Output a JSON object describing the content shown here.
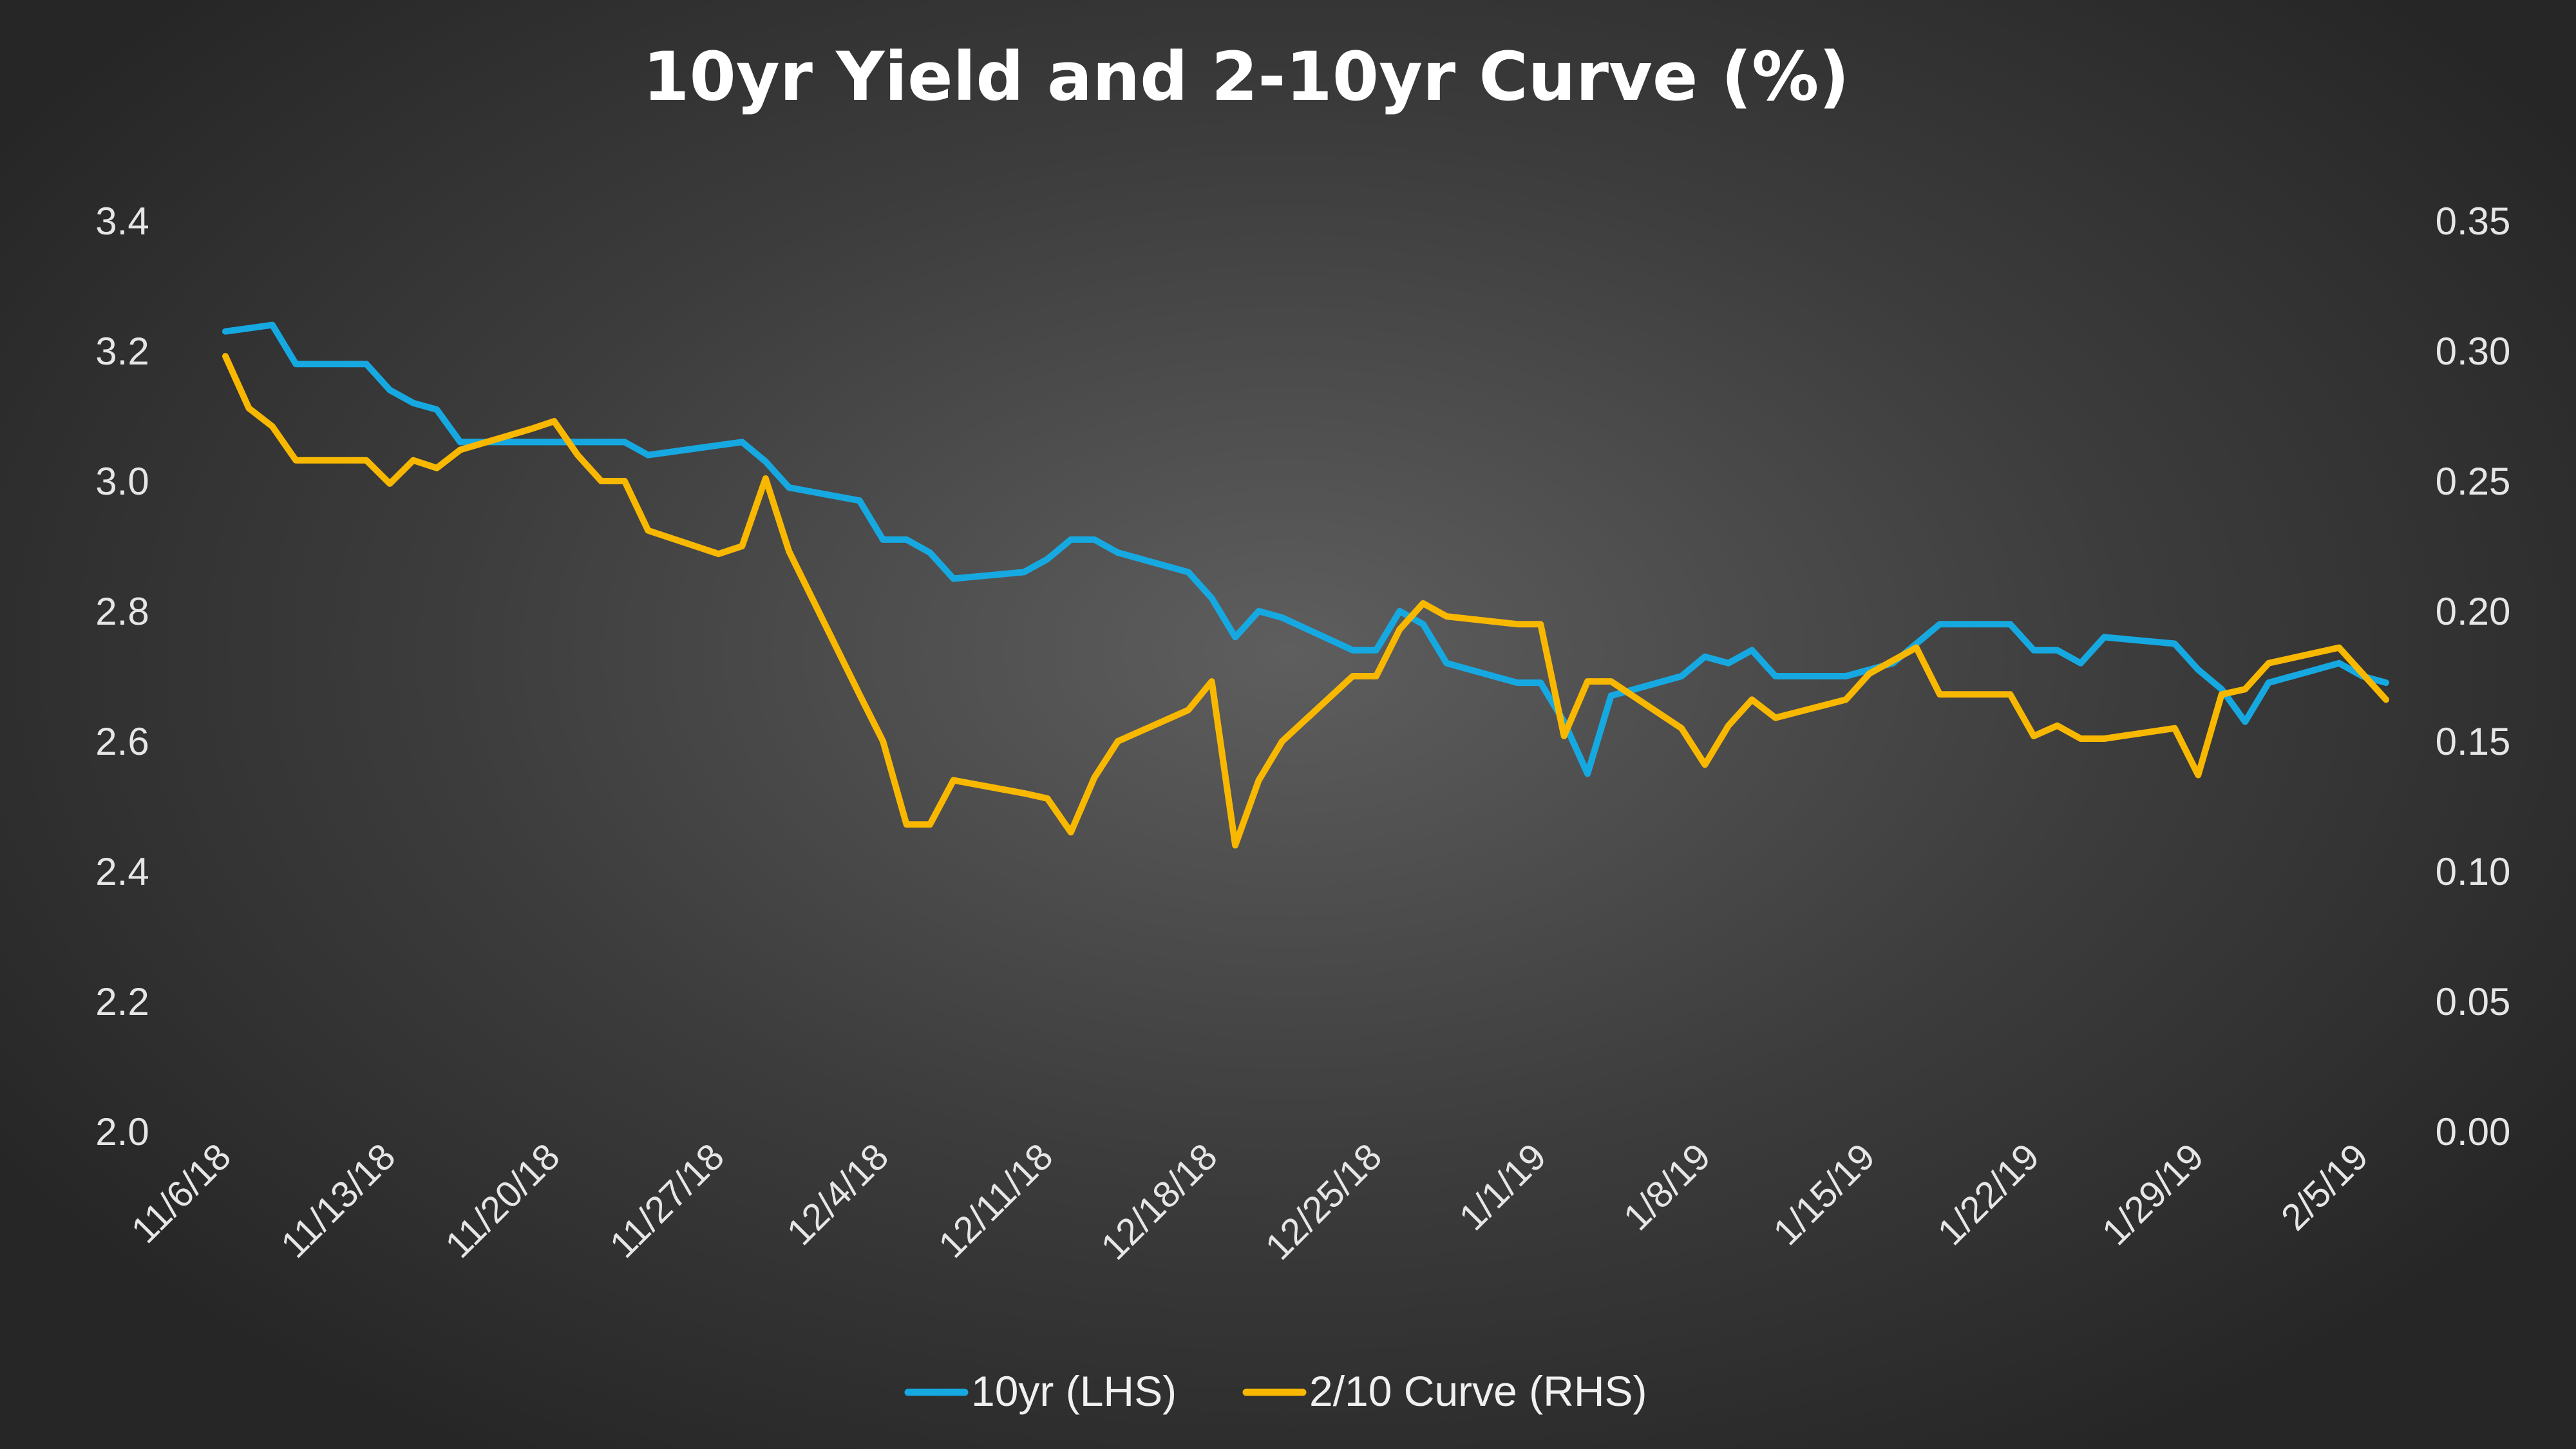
{
  "chart_data": {
    "type": "line",
    "title": "10yr Yield and 2-10yr Curve (%)",
    "x_start_date": "11/6/18",
    "x_end_date": "2/6/19",
    "x_tick_labels": [
      "11/6/18",
      "11/13/18",
      "11/20/18",
      "11/27/18",
      "12/4/18",
      "12/11/18",
      "12/18/18",
      "12/25/18",
      "1/1/19",
      "1/8/19",
      "1/15/19",
      "1/22/19",
      "1/29/19",
      "2/5/19"
    ],
    "y_left": {
      "range": [
        2.0,
        3.4
      ],
      "ticks": [
        "2.0",
        "2.2",
        "2.4",
        "2.6",
        "2.8",
        "3.0",
        "3.2",
        "3.4"
      ]
    },
    "y_right": {
      "range": [
        0.0,
        0.35
      ],
      "ticks": [
        "0.00",
        "0.05",
        "0.10",
        "0.15",
        "0.20",
        "0.25",
        "0.30",
        "0.35"
      ]
    },
    "grid": false,
    "legend_position": "bottom",
    "series": [
      {
        "name": "10yr (LHS)",
        "axis": "left",
        "color": "#16a9e1",
        "points": [
          [
            "11/6/18",
            3.23
          ],
          [
            "11/7/18",
            3.235
          ],
          [
            "11/8/18",
            3.24
          ],
          [
            "11/9/18",
            3.18
          ],
          [
            "11/12/18",
            3.18
          ],
          [
            "11/13/18",
            3.14
          ],
          [
            "11/14/18",
            3.12
          ],
          [
            "11/15/18",
            3.11
          ],
          [
            "11/16/18",
            3.06
          ],
          [
            "11/19/18",
            3.06
          ],
          [
            "11/20/18",
            3.06
          ],
          [
            "11/21/18",
            3.06
          ],
          [
            "11/22/18",
            3.06
          ],
          [
            "11/23/18",
            3.06
          ],
          [
            "11/24/18",
            3.04
          ],
          [
            "11/26/18",
            3.05
          ],
          [
            "11/27/18",
            3.055
          ],
          [
            "11/28/18",
            3.06
          ],
          [
            "11/29/18",
            3.03
          ],
          [
            "11/30/18",
            2.99
          ],
          [
            "12/3/18",
            2.97
          ],
          [
            "12/4/18",
            2.91
          ],
          [
            "12/5/18",
            2.91
          ],
          [
            "12/6/18",
            2.89
          ],
          [
            "12/7/18",
            2.85
          ],
          [
            "12/10/18",
            2.86
          ],
          [
            "12/11/18",
            2.88
          ],
          [
            "12/12/18",
            2.91
          ],
          [
            "12/13/18",
            2.91
          ],
          [
            "12/14/18",
            2.89
          ],
          [
            "12/17/18",
            2.86
          ],
          [
            "12/18/18",
            2.82
          ],
          [
            "12/19/18",
            2.76
          ],
          [
            "12/20/18",
            2.8
          ],
          [
            "12/21/18",
            2.79
          ],
          [
            "12/24/18",
            2.74
          ],
          [
            "12/25/18",
            2.74
          ],
          [
            "12/26/18",
            2.8
          ],
          [
            "12/27/18",
            2.78
          ],
          [
            "12/28/18",
            2.72
          ],
          [
            "12/31/18",
            2.69
          ],
          [
            "1/1/19",
            2.69
          ],
          [
            "1/2/19",
            2.63
          ],
          [
            "1/3/19",
            2.55
          ],
          [
            "1/4/19",
            2.67
          ],
          [
            "1/7/19",
            2.7
          ],
          [
            "1/8/19",
            2.73
          ],
          [
            "1/9/19",
            2.72
          ],
          [
            "1/10/19",
            2.74
          ],
          [
            "1/11/19",
            2.7
          ],
          [
            "1/14/19",
            2.7
          ],
          [
            "1/15/19",
            2.71
          ],
          [
            "1/16/19",
            2.72
          ],
          [
            "1/17/19",
            2.75
          ],
          [
            "1/18/19",
            2.78
          ],
          [
            "1/21/19",
            2.78
          ],
          [
            "1/22/19",
            2.74
          ],
          [
            "1/23/19",
            2.74
          ],
          [
            "1/24/19",
            2.72
          ],
          [
            "1/25/19",
            2.76
          ],
          [
            "1/28/19",
            2.75
          ],
          [
            "1/29/19",
            2.71
          ],
          [
            "1/30/19",
            2.68
          ],
          [
            "1/31/19",
            2.63
          ],
          [
            "2/1/19",
            2.69
          ],
          [
            "2/4/19",
            2.72
          ],
          [
            "2/5/19",
            2.7
          ],
          [
            "2/6/19",
            2.69
          ]
        ]
      },
      {
        "name": "2/10 Curve (RHS)",
        "axis": "right",
        "color": "#f9b800",
        "points": [
          [
            "11/6/18",
            0.298
          ],
          [
            "11/7/18",
            0.278
          ],
          [
            "11/8/18",
            0.271
          ],
          [
            "11/9/18",
            0.258
          ],
          [
            "11/12/18",
            0.258
          ],
          [
            "11/13/18",
            0.249
          ],
          [
            "11/14/18",
            0.258
          ],
          [
            "11/15/18",
            0.255
          ],
          [
            "11/16/18",
            0.262
          ],
          [
            "11/19/18",
            0.27
          ],
          [
            "11/20/18",
            0.273
          ],
          [
            "11/21/18",
            0.26
          ],
          [
            "11/22/18",
            0.25
          ],
          [
            "11/23/18",
            0.25
          ],
          [
            "11/24/18",
            0.231
          ],
          [
            "11/26/18",
            0.225
          ],
          [
            "11/27/18",
            0.222
          ],
          [
            "11/28/18",
            0.225
          ],
          [
            "11/29/18",
            0.251
          ],
          [
            "11/30/18",
            0.223
          ],
          [
            "12/3/18",
            0.168
          ],
          [
            "12/4/18",
            0.15
          ],
          [
            "12/5/18",
            0.118
          ],
          [
            "12/6/18",
            0.118
          ],
          [
            "12/7/18",
            0.135
          ],
          [
            "12/10/18",
            0.13
          ],
          [
            "12/11/18",
            0.128
          ],
          [
            "12/12/18",
            0.115
          ],
          [
            "12/13/18",
            0.136
          ],
          [
            "12/14/18",
            0.15
          ],
          [
            "12/17/18",
            0.162
          ],
          [
            "12/18/18",
            0.173
          ],
          [
            "12/19/18",
            0.11
          ],
          [
            "12/20/18",
            0.135
          ],
          [
            "12/21/18",
            0.15
          ],
          [
            "12/24/18",
            0.175
          ],
          [
            "12/25/18",
            0.175
          ],
          [
            "12/26/18",
            0.193
          ],
          [
            "12/27/18",
            0.203
          ],
          [
            "12/28/18",
            0.198
          ],
          [
            "12/31/18",
            0.195
          ],
          [
            "1/1/19",
            0.195
          ],
          [
            "1/2/19",
            0.152
          ],
          [
            "1/3/19",
            0.173
          ],
          [
            "1/4/19",
            0.173
          ],
          [
            "1/7/19",
            0.155
          ],
          [
            "1/8/19",
            0.141
          ],
          [
            "1/9/19",
            0.156
          ],
          [
            "1/10/19",
            0.166
          ],
          [
            "1/11/19",
            0.159
          ],
          [
            "1/14/19",
            0.166
          ],
          [
            "1/15/19",
            0.176
          ],
          [
            "1/16/19",
            0.181
          ],
          [
            "1/17/19",
            0.186
          ],
          [
            "1/18/19",
            0.168
          ],
          [
            "1/21/19",
            0.168
          ],
          [
            "1/22/19",
            0.152
          ],
          [
            "1/23/19",
            0.156
          ],
          [
            "1/24/19",
            0.151
          ],
          [
            "1/25/19",
            0.151
          ],
          [
            "1/28/19",
            0.155
          ],
          [
            "1/29/19",
            0.137
          ],
          [
            "1/30/19",
            0.168
          ],
          [
            "1/31/19",
            0.17
          ],
          [
            "2/1/19",
            0.18
          ],
          [
            "2/4/19",
            0.186
          ],
          [
            "2/5/19",
            0.176
          ],
          [
            "2/6/19",
            0.166
          ]
        ]
      }
    ]
  }
}
